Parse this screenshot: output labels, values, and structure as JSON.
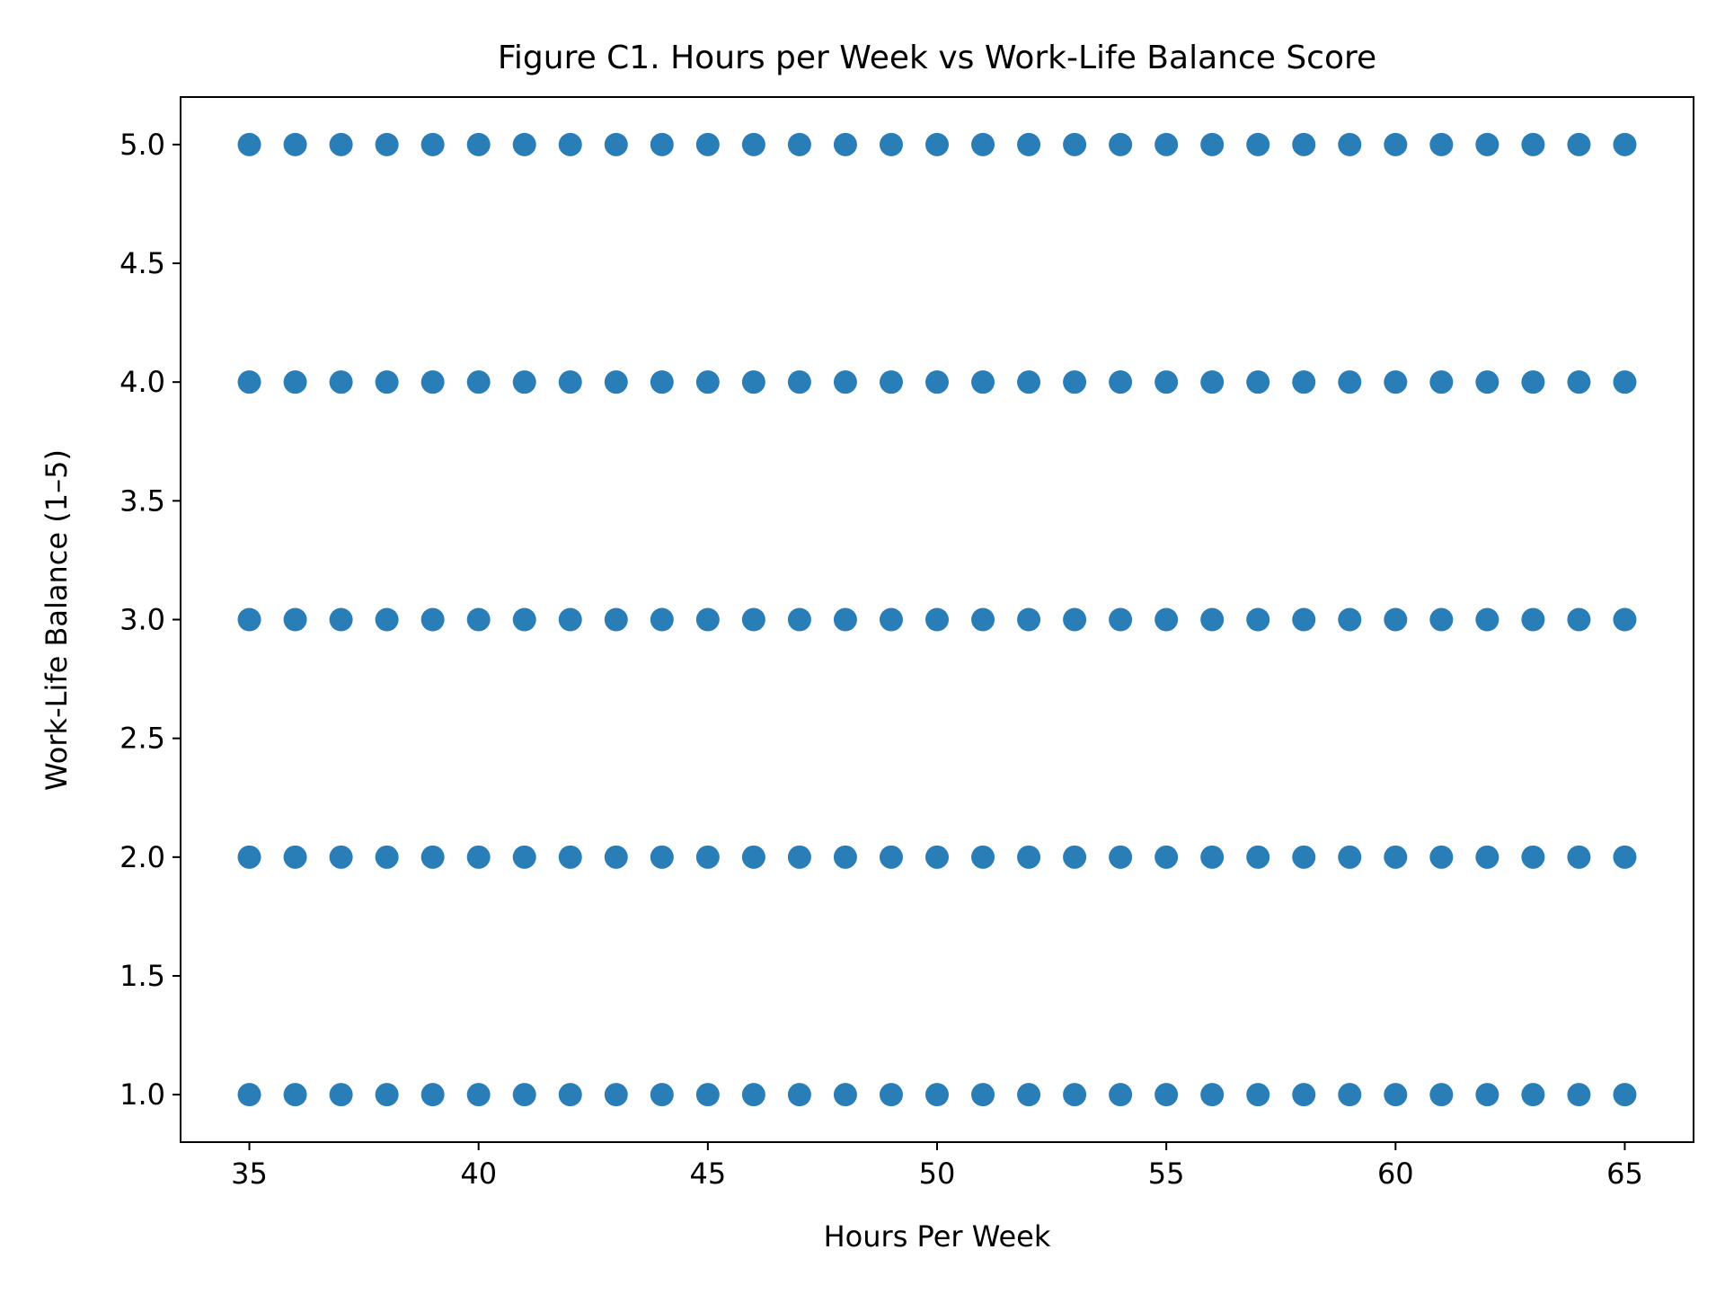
{
  "chart_data": {
    "type": "scatter",
    "title": "Figure C1. Hours per Week vs Work-Life Balance Score",
    "xlabel": "Hours Per Week",
    "ylabel": "Work-Life Balance (1–5)",
    "xlim": [
      33.5,
      66.5
    ],
    "ylim": [
      0.8,
      5.2
    ],
    "xticks": [
      35,
      40,
      45,
      50,
      55,
      60,
      65
    ],
    "xtick_labels": [
      "35",
      "40",
      "45",
      "50",
      "55",
      "60",
      "65"
    ],
    "yticks": [
      1.0,
      1.5,
      2.0,
      2.5,
      3.0,
      3.5,
      4.0,
      4.5,
      5.0
    ],
    "ytick_labels": [
      "1.0",
      "1.5",
      "2.0",
      "2.5",
      "3.0",
      "3.5",
      "4.0",
      "4.5",
      "5.0"
    ],
    "grid": false,
    "legend": "none",
    "marker_color": "#1f77b4",
    "series": [
      {
        "x": [
          35,
          36,
          37,
          38,
          39,
          40,
          41,
          42,
          43,
          44,
          45,
          46,
          47,
          48,
          49,
          50,
          51,
          52,
          53,
          54,
          55,
          56,
          57,
          58,
          59,
          60,
          61,
          62,
          63,
          64,
          65,
          35,
          36,
          37,
          38,
          39,
          40,
          41,
          42,
          43,
          44,
          45,
          46,
          47,
          48,
          49,
          50,
          51,
          52,
          53,
          54,
          55,
          56,
          57,
          58,
          59,
          60,
          61,
          62,
          63,
          64,
          65,
          35,
          36,
          37,
          38,
          39,
          40,
          41,
          42,
          43,
          44,
          45,
          46,
          47,
          48,
          49,
          50,
          51,
          52,
          53,
          54,
          55,
          56,
          57,
          58,
          59,
          60,
          61,
          62,
          63,
          64,
          65,
          35,
          36,
          37,
          38,
          39,
          40,
          41,
          42,
          43,
          44,
          45,
          46,
          47,
          48,
          49,
          50,
          51,
          52,
          53,
          54,
          55,
          56,
          57,
          58,
          59,
          60,
          61,
          62,
          63,
          64,
          65,
          35,
          36,
          37,
          38,
          39,
          40,
          41,
          42,
          43,
          44,
          45,
          46,
          47,
          48,
          49,
          50,
          51,
          52,
          53,
          54,
          55,
          56,
          57,
          58,
          59,
          60,
          61,
          62,
          63,
          64,
          65
        ],
        "y": [
          1,
          1,
          1,
          1,
          1,
          1,
          1,
          1,
          1,
          1,
          1,
          1,
          1,
          1,
          1,
          1,
          1,
          1,
          1,
          1,
          1,
          1,
          1,
          1,
          1,
          1,
          1,
          1,
          1,
          1,
          1,
          2,
          2,
          2,
          2,
          2,
          2,
          2,
          2,
          2,
          2,
          2,
          2,
          2,
          2,
          2,
          2,
          2,
          2,
          2,
          2,
          2,
          2,
          2,
          2,
          2,
          2,
          2,
          2,
          2,
          2,
          2,
          3,
          3,
          3,
          3,
          3,
          3,
          3,
          3,
          3,
          3,
          3,
          3,
          3,
          3,
          3,
          3,
          3,
          3,
          3,
          3,
          3,
          3,
          3,
          3,
          3,
          3,
          3,
          3,
          3,
          3,
          3,
          4,
          4,
          4,
          4,
          4,
          4,
          4,
          4,
          4,
          4,
          4,
          4,
          4,
          4,
          4,
          4,
          4,
          4,
          4,
          4,
          4,
          4,
          4,
          4,
          4,
          4,
          4,
          4,
          4,
          4,
          4,
          5,
          5,
          5,
          5,
          5,
          5,
          5,
          5,
          5,
          5,
          5,
          5,
          5,
          5,
          5,
          5,
          5,
          5,
          5,
          5,
          5,
          5,
          5,
          5,
          5,
          5,
          5,
          5,
          5,
          5,
          5
        ]
      }
    ]
  }
}
